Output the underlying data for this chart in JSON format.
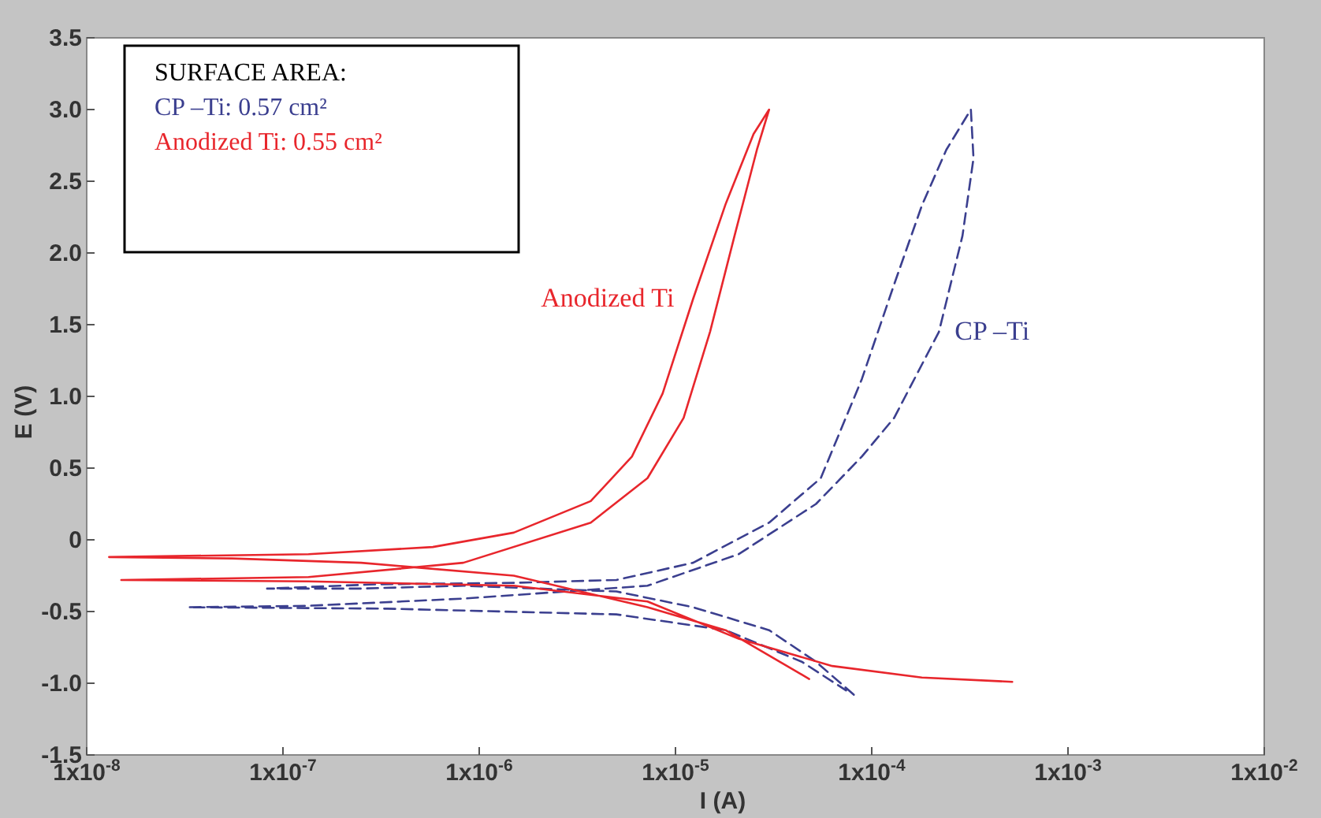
{
  "chart_data": {
    "type": "line",
    "xlabel": "I (A)",
    "ylabel": "E (V)",
    "log": "x",
    "xlim": [
      1e-08,
      0.01
    ],
    "xticks": [
      {
        "value": 1e-08,
        "label": "1x10$^{-8}$"
      },
      {
        "value": 1e-07,
        "label": "1x10$^{-7}$"
      },
      {
        "value": 1e-06,
        "label": "1x10$^{-6}$"
      },
      {
        "value": 1e-05,
        "label": "1x10$^{-5}$"
      },
      {
        "value": 0.0001,
        "label": "1x10$^{-4}$"
      },
      {
        "value": 0.001,
        "label": "1x10$^{-3}$"
      },
      {
        "value": 0.01,
        "label": "1x10$^{-2}$"
      }
    ],
    "ylim": [
      -1.5,
      3.5
    ],
    "yticks": [
      {
        "value": 3.5,
        "label": "3.5"
      },
      {
        "value": 3,
        "label": "3.0"
      },
      {
        "value": 2.5,
        "label": "2.5"
      },
      {
        "value": 2,
        "label": "2.0"
      },
      {
        "value": 1.5,
        "label": "1.5"
      },
      {
        "value": 1,
        "label": "1.0"
      },
      {
        "value": 0.5,
        "label": "0.5"
      },
      0,
      {
        "value": -0.5,
        "label": "-0.5"
      },
      {
        "value": -1,
        "label": "-1.0"
      },
      {
        "value": -1.5,
        "label": "-1.5"
      }
    ],
    "annotations": [
      "SURFACE AREA:",
      "CP –Ti: 0.57 cm²",
      "Anodized Ti: 0.55 cm²"
    ],
    "series": [
      {
        "name": "CP –Ti",
        "color": "#3b3f8f",
        "line_style": "dashed",
        "x": [
          8.1e-05,
          5.2e-05,
          3e-05,
          1.23e-05,
          5e-06,
          8.3e-07,
          2.5e-07,
          8.3e-08,
          3e-07,
          1.5e-06,
          5e-06,
          1.23e-05,
          3e-05,
          5.5e-05,
          8.9e-05,
          0.00013,
          0.00018,
          0.00024,
          0.00032,
          0.00033,
          0.00029,
          0.00022,
          0.00013,
          8.9e-05,
          5.2e-05,
          2.1e-05,
          7.2e-06,
          8.3e-07,
          1.35e-07,
          3.3e-08,
          3.4e-07,
          5e-06,
          1.8e-05,
          4.4e-05,
          7.4e-05
        ],
        "values": [
          -1.08,
          -0.85,
          -0.63,
          -0.47,
          -0.36,
          -0.32,
          -0.34,
          -0.34,
          -0.31,
          -0.3,
          -0.28,
          -0.16,
          0.12,
          0.43,
          1.12,
          1.78,
          2.33,
          2.72,
          3.0,
          2.66,
          2.12,
          1.45,
          0.85,
          0.58,
          0.25,
          -0.1,
          -0.32,
          -0.41,
          -0.46,
          -0.47,
          -0.48,
          -0.52,
          -0.63,
          -0.85,
          -1.05
        ]
      },
      {
        "name": "Anodized Ti",
        "color": "#e8262c",
        "line_style": "solid",
        "x": [
          4.8e-05,
          1.8e-05,
          7.2e-06,
          1.5e-06,
          2.5e-07,
          5.5e-08,
          1.3e-08,
          1.35e-07,
          5.8e-07,
          1.5e-06,
          3.7e-06,
          6e-06,
          8.6e-06,
          1.23e-05,
          1.8e-05,
          2.5e-05,
          3e-05,
          2.6e-05,
          2e-05,
          1.5e-05,
          1.1e-05,
          7.2e-06,
          3.7e-06,
          8.3e-07,
          1.35e-07,
          1.5e-08,
          1.35e-07,
          1.5e-06,
          7.2e-06,
          2.1e-05,
          6.3e-05,
          0.00018,
          0.00052
        ],
        "values": [
          -0.97,
          -0.63,
          -0.47,
          -0.25,
          -0.16,
          -0.13,
          -0.12,
          -0.1,
          -0.05,
          0.05,
          0.27,
          0.58,
          1.02,
          1.68,
          2.34,
          2.83,
          3.0,
          2.72,
          2.12,
          1.45,
          0.85,
          0.43,
          0.12,
          -0.16,
          -0.26,
          -0.28,
          -0.29,
          -0.32,
          -0.43,
          -0.69,
          -0.88,
          -0.96,
          -0.99
        ]
      }
    ]
  }
}
